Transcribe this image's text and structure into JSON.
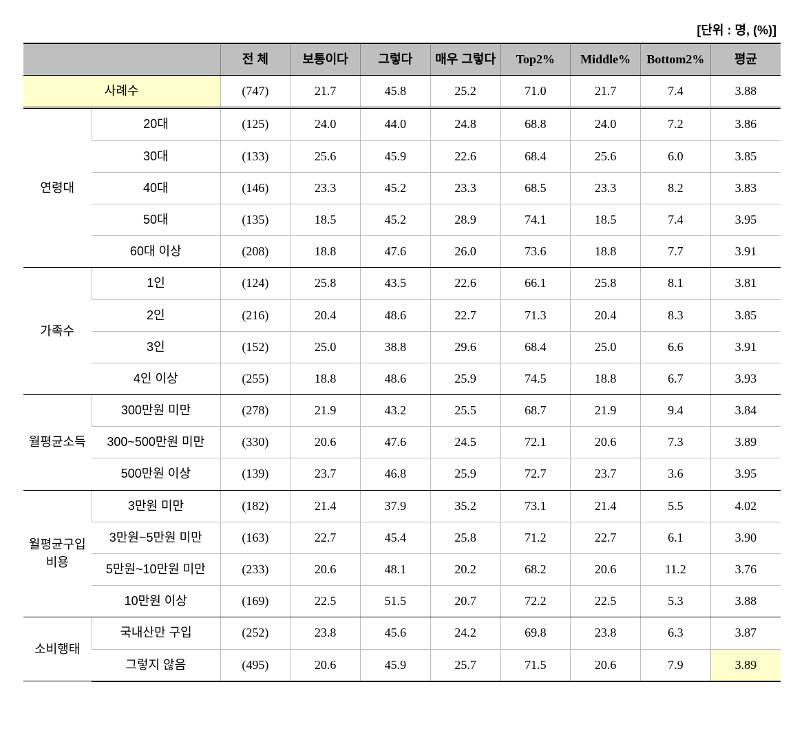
{
  "unit_label": "[단위 : 명, (%)]",
  "columns": {
    "cat_blank": "",
    "total": "전 체",
    "normal": "보통이다",
    "yes": "그렇다",
    "very_yes": "매우 그렇다",
    "top2": "Top2%",
    "middle": "Middle%",
    "bottom2": "Bottom2%",
    "avg": "평균"
  },
  "summary": {
    "label": "사례수",
    "v0": "(747)",
    "v1": "21.7",
    "v2": "45.8",
    "v3": "25.2",
    "v4": "71.0",
    "v5": "21.7",
    "v6": "7.4",
    "v7": "3.88"
  },
  "groups": [
    {
      "name": "연령대",
      "rows": [
        {
          "label": "20대",
          "v0": "(125)",
          "v1": "24.0",
          "v2": "44.0",
          "v3": "24.8",
          "v4": "68.8",
          "v5": "24.0",
          "v6": "7.2",
          "v7": "3.86"
        },
        {
          "label": "30대",
          "v0": "(133)",
          "v1": "25.6",
          "v2": "45.9",
          "v3": "22.6",
          "v4": "68.4",
          "v5": "25.6",
          "v6": "6.0",
          "v7": "3.85"
        },
        {
          "label": "40대",
          "v0": "(146)",
          "v1": "23.3",
          "v2": "45.2",
          "v3": "23.3",
          "v4": "68.5",
          "v5": "23.3",
          "v6": "8.2",
          "v7": "3.83"
        },
        {
          "label": "50대",
          "v0": "(135)",
          "v1": "18.5",
          "v2": "45.2",
          "v3": "28.9",
          "v4": "74.1",
          "v5": "18.5",
          "v6": "7.4",
          "v7": "3.95"
        },
        {
          "label": "60대 이상",
          "v0": "(208)",
          "v1": "18.8",
          "v2": "47.6",
          "v3": "26.0",
          "v4": "73.6",
          "v5": "18.8",
          "v6": "7.7",
          "v7": "3.91"
        }
      ]
    },
    {
      "name": "가족수",
      "rows": [
        {
          "label": "1인",
          "v0": "(124)",
          "v1": "25.8",
          "v2": "43.5",
          "v3": "22.6",
          "v4": "66.1",
          "v5": "25.8",
          "v6": "8.1",
          "v7": "3.81"
        },
        {
          "label": "2인",
          "v0": "(216)",
          "v1": "20.4",
          "v2": "48.6",
          "v3": "22.7",
          "v4": "71.3",
          "v5": "20.4",
          "v6": "8.3",
          "v7": "3.85"
        },
        {
          "label": "3인",
          "v0": "(152)",
          "v1": "25.0",
          "v2": "38.8",
          "v3": "29.6",
          "v4": "68.4",
          "v5": "25.0",
          "v6": "6.6",
          "v7": "3.91"
        },
        {
          "label": "4인 이상",
          "v0": "(255)",
          "v1": "18.8",
          "v2": "48.6",
          "v3": "25.9",
          "v4": "74.5",
          "v5": "18.8",
          "v6": "6.7",
          "v7": "3.93"
        }
      ]
    },
    {
      "name": "월평균소득",
      "rows": [
        {
          "label": "300만원 미만",
          "v0": "(278)",
          "v1": "21.9",
          "v2": "43.2",
          "v3": "25.5",
          "v4": "68.7",
          "v5": "21.9",
          "v6": "9.4",
          "v7": "3.84"
        },
        {
          "label": "300~500만원 미만",
          "v0": "(330)",
          "v1": "20.6",
          "v2": "47.6",
          "v3": "24.5",
          "v4": "72.1",
          "v5": "20.6",
          "v6": "7.3",
          "v7": "3.89"
        },
        {
          "label": "500만원 이상",
          "v0": "(139)",
          "v1": "23.7",
          "v2": "46.8",
          "v3": "25.9",
          "v4": "72.7",
          "v5": "23.7",
          "v6": "3.6",
          "v7": "3.95"
        }
      ]
    },
    {
      "name": "월평균구입비용",
      "rows": [
        {
          "label": "3만원 미만",
          "v0": "(182)",
          "v1": "21.4",
          "v2": "37.9",
          "v3": "35.2",
          "v4": "73.1",
          "v5": "21.4",
          "v6": "5.5",
          "v7": "4.02"
        },
        {
          "label": "3만원~5만원 미만",
          "v0": "(163)",
          "v1": "22.7",
          "v2": "45.4",
          "v3": "25.8",
          "v4": "71.2",
          "v5": "22.7",
          "v6": "6.1",
          "v7": "3.90"
        },
        {
          "label": "5만원~10만원 미만",
          "v0": "(233)",
          "v1": "20.6",
          "v2": "48.1",
          "v3": "20.2",
          "v4": "68.2",
          "v5": "20.6",
          "v6": "11.2",
          "v7": "3.76"
        },
        {
          "label": "10만원 이상",
          "v0": "(169)",
          "v1": "22.5",
          "v2": "51.5",
          "v3": "20.7",
          "v4": "72.2",
          "v5": "22.5",
          "v6": "5.3",
          "v7": "3.88"
        }
      ]
    },
    {
      "name": "소비행태",
      "rows": [
        {
          "label": "국내산만 구입",
          "v0": "(252)",
          "v1": "23.8",
          "v2": "45.6",
          "v3": "24.2",
          "v4": "69.8",
          "v5": "23.8",
          "v6": "6.3",
          "v7": "3.87"
        },
        {
          "label": "그렇지 않음",
          "v0": "(495)",
          "v1": "20.6",
          "v2": "45.9",
          "v3": "25.7",
          "v4": "71.5",
          "v5": "20.6",
          "v6": "7.9",
          "v7": "3.89",
          "hl_last": true
        }
      ]
    }
  ]
}
